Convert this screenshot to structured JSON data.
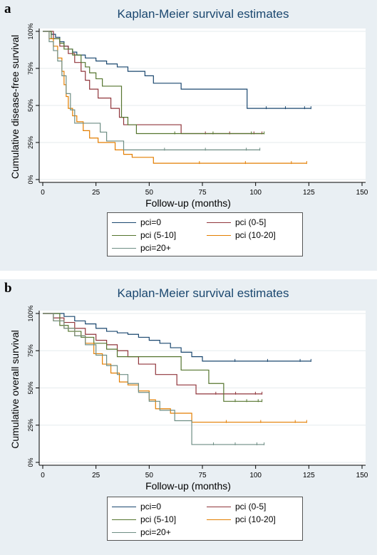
{
  "panels": [
    {
      "letter": "a",
      "chart_data": {
        "type": "line",
        "title": "Kaplan-Meier survival estimates",
        "xlabel": "Follow-up (months)",
        "ylabel": "Cumulative disease-free survival",
        "xlim": [
          0,
          150
        ],
        "ylim": [
          0,
          1
        ],
        "xticks": [
          "0",
          "25",
          "50",
          "75",
          "100",
          "125",
          "150"
        ],
        "yticks": [
          "0%",
          "25%",
          "50%",
          "75%",
          "100%"
        ],
        "grid": true,
        "legend_position": "bottom",
        "series": [
          {
            "name": "pci=0",
            "color": "#1a476f",
            "x": [
              0,
              4,
              6,
              8,
              10,
              12,
              14,
              16,
              20,
              25,
              30,
              35,
              40,
              48,
              52,
              65,
              80,
              96,
              126
            ],
            "y": [
              1.0,
              0.98,
              0.96,
              0.93,
              0.9,
              0.88,
              0.86,
              0.84,
              0.82,
              0.8,
              0.78,
              0.76,
              0.73,
              0.7,
              0.65,
              0.61,
              0.61,
              0.48,
              0.48
            ]
          },
          {
            "name": "pci (0-5]",
            "color": "#90353b",
            "x": [
              0,
              5,
              8,
              12,
              15,
              18,
              20,
              22,
              26,
              32,
              36,
              38,
              48,
              65,
              103
            ],
            "y": [
              1.0,
              0.95,
              0.9,
              0.85,
              0.79,
              0.73,
              0.67,
              0.61,
              0.55,
              0.48,
              0.42,
              0.37,
              0.37,
              0.31,
              0.31
            ]
          },
          {
            "name": "pci (5-10]",
            "color": "#55752f",
            "x": [
              0,
              4,
              8,
              10,
              14,
              18,
              20,
              22,
              25,
              28,
              32,
              37,
              40,
              44,
              104
            ],
            "y": [
              1.0,
              0.95,
              0.92,
              0.88,
              0.84,
              0.79,
              0.76,
              0.72,
              0.68,
              0.63,
              0.63,
              0.42,
              0.37,
              0.31,
              0.31
            ]
          },
          {
            "name": "pci (10-20]",
            "color": "#e37e00",
            "x": [
              0,
              3,
              5,
              7,
              9,
              10,
              11,
              12,
              14,
              16,
              19,
              22,
              26,
              30,
              34,
              38,
              42,
              52,
              124
            ],
            "y": [
              1.0,
              0.95,
              0.9,
              0.82,
              0.73,
              0.64,
              0.56,
              0.48,
              0.43,
              0.39,
              0.33,
              0.28,
              0.25,
              0.25,
              0.2,
              0.17,
              0.15,
              0.11,
              0.11
            ]
          },
          {
            "name": "pci=20+",
            "color": "#6e8e84",
            "x": [
              0,
              3,
              5,
              7,
              9,
              11,
              13,
              15,
              19,
              27,
              30,
              38,
              102
            ],
            "y": [
              1.0,
              0.93,
              0.87,
              0.8,
              0.7,
              0.58,
              0.47,
              0.38,
              0.38,
              0.32,
              0.26,
              0.2,
              0.2
            ]
          }
        ]
      }
    },
    {
      "letter": "b",
      "chart_data": {
        "type": "line",
        "title": "Kaplan-Meier survival estimates",
        "xlabel": "Follow-up (months)",
        "ylabel": "Cumulative overall survival",
        "xlim": [
          0,
          150
        ],
        "ylim": [
          0,
          1
        ],
        "xticks": [
          "0",
          "25",
          "50",
          "75",
          "100",
          "125",
          "150"
        ],
        "yticks": [
          "0%",
          "25%",
          "50%",
          "75%",
          "100%"
        ],
        "grid": true,
        "legend_position": "bottom",
        "series": [
          {
            "name": "pci=0",
            "color": "#1a476f",
            "x": [
              0,
              10,
              15,
              20,
              25,
              30,
              35,
              40,
              45,
              50,
              55,
              60,
              65,
              70,
              75,
              126
            ],
            "y": [
              1.0,
              0.98,
              0.95,
              0.93,
              0.9,
              0.88,
              0.87,
              0.86,
              0.84,
              0.82,
              0.8,
              0.77,
              0.74,
              0.71,
              0.68,
              0.68
            ]
          },
          {
            "name": "pci (0-5]",
            "color": "#90353b",
            "x": [
              0,
              5,
              10,
              15,
              20,
              25,
              30,
              35,
              40,
              45,
              53,
              63,
              72,
              103
            ],
            "y": [
              1.0,
              0.97,
              0.94,
              0.9,
              0.86,
              0.82,
              0.79,
              0.75,
              0.71,
              0.66,
              0.59,
              0.52,
              0.46,
              0.46
            ]
          },
          {
            "name": "pci (5-10]",
            "color": "#55752f",
            "x": [
              0,
              8,
              12,
              18,
              24,
              30,
              35,
              43,
              65,
              78,
              85,
              103
            ],
            "y": [
              1.0,
              0.92,
              0.88,
              0.84,
              0.8,
              0.76,
              0.71,
              0.71,
              0.62,
              0.53,
              0.41,
              0.41
            ]
          },
          {
            "name": "pci (10-20]",
            "color": "#e37e00",
            "x": [
              0,
              5,
              10,
              15,
              20,
              24,
              28,
              32,
              36,
              40,
              45,
              50,
              53,
              60,
              70,
              124
            ],
            "y": [
              1.0,
              0.95,
              0.9,
              0.85,
              0.8,
              0.73,
              0.66,
              0.6,
              0.54,
              0.52,
              0.48,
              0.42,
              0.36,
              0.33,
              0.27,
              0.27
            ]
          },
          {
            "name": "pci=20+",
            "color": "#6e8e84",
            "x": [
              0,
              5,
              10,
              15,
              20,
              25,
              30,
              35,
              40,
              45,
              50,
              55,
              62,
              70,
              104
            ],
            "y": [
              1.0,
              0.95,
              0.9,
              0.85,
              0.79,
              0.72,
              0.65,
              0.59,
              0.53,
              0.47,
              0.41,
              0.35,
              0.28,
              0.12,
              0.12
            ]
          }
        ]
      }
    }
  ]
}
